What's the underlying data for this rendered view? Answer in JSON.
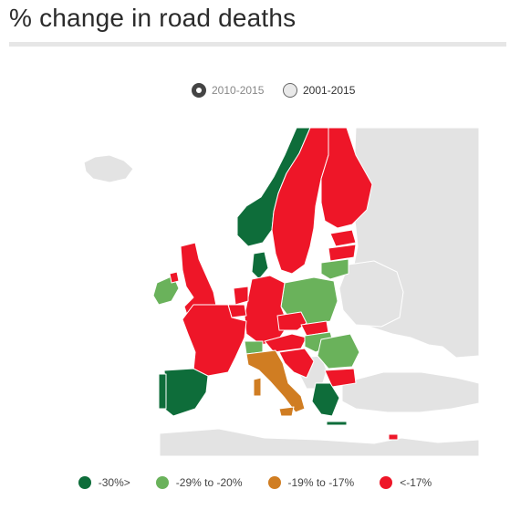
{
  "title": "% change in road deaths",
  "toggles": [
    {
      "label": "2010-2015",
      "selected": true
    },
    {
      "label": "2001-2015",
      "selected": false
    }
  ],
  "colors": {
    "dark_green": "#0e6d3a",
    "light_green": "#6ab25b",
    "orange": "#d07d22",
    "red": "#ee1628",
    "grey": "#e3e3e3",
    "border": "#ffffff"
  },
  "legend": [
    {
      "label": "-30%>",
      "color": "#0e6d3a"
    },
    {
      "label": "-29% to -20%",
      "color": "#6ab25b"
    },
    {
      "label": "-19% to -17%",
      "color": "#d07d22"
    },
    {
      "label": "<-17%",
      "color": "#ee1628"
    }
  ]
}
